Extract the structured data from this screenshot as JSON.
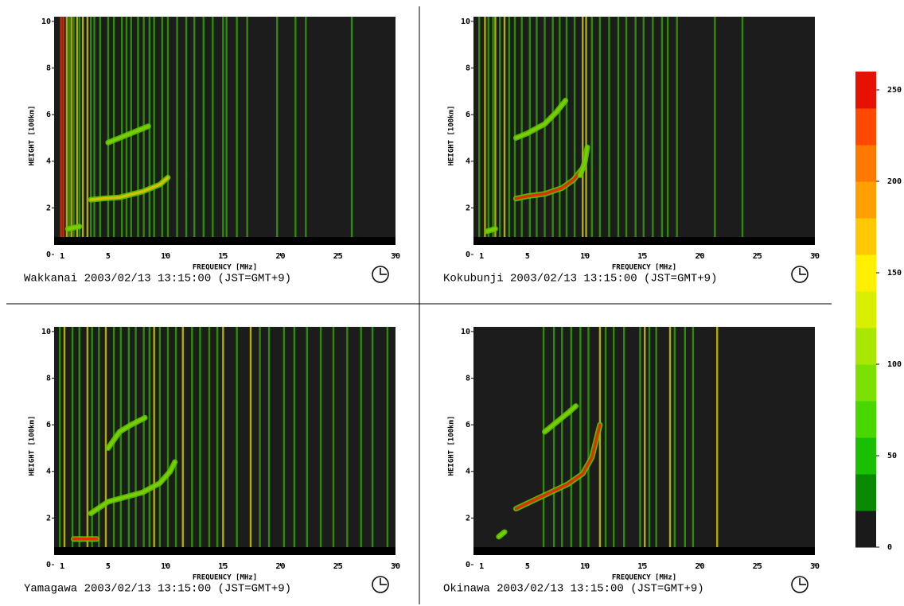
{
  "chart_data": [
    {
      "type": "ionogram",
      "caption": "Wakkanai 2003/02/13 13:15:00 (JST=GMT+9)",
      "xlabel": "FREQUENCY [MHz]",
      "ylabel": "HEIGHT [100km]",
      "xlim": [
        0.3,
        30
      ],
      "ylim": [
        0,
        10.2
      ],
      "xticks": [
        1,
        5,
        10,
        15,
        20,
        25,
        30
      ],
      "yticks": [
        0,
        2,
        4,
        6,
        8,
        10
      ],
      "stripes": [
        {
          "color": "#e83000",
          "x": [
            0.9,
            1.1
          ]
        },
        {
          "color": "#c8c800",
          "x": [
            1.4,
            1.8,
            2.3,
            2.8,
            3.2
          ]
        },
        {
          "color": "#2fa000",
          "x": [
            1.6,
            2.0,
            2.5,
            3.5,
            3.8,
            4.3,
            5.0,
            5.5,
            6.2,
            6.6,
            7.0,
            7.6,
            8.1,
            8.6,
            9.0,
            9.7,
            10.2,
            11.0,
            11.8,
            12.5,
            13.3,
            14.1,
            15.0,
            15.3,
            16.2,
            17.1,
            19.7,
            21.3,
            22.2,
            26.2
          ]
        }
      ],
      "series": [
        {
          "color": "#d4c000",
          "x": [
            3.5,
            4.5,
            6,
            8,
            9.5,
            10.2
          ],
          "values": [
            2.35,
            2.4,
            2.45,
            2.7,
            3.0,
            3.3
          ]
        },
        {
          "color": "#7ccd00",
          "x": [
            5,
            6,
            7.5,
            8.5
          ],
          "values": [
            4.8,
            5.0,
            5.3,
            5.5
          ]
        },
        {
          "color": "#7ccd00",
          "x": [
            1.5,
            2.5
          ],
          "values": [
            1.1,
            1.2
          ]
        }
      ]
    },
    {
      "type": "ionogram",
      "caption": "Kokubunji 2003/02/13 13:15:00 (JST=GMT+9)",
      "xlabel": "FREQUENCY [MHz]",
      "ylabel": "HEIGHT [100km]",
      "xlim": [
        0.3,
        30
      ],
      "ylim": [
        0,
        10.2
      ],
      "xticks": [
        1,
        5,
        10,
        15,
        20,
        25,
        30
      ],
      "yticks": [
        0,
        2,
        4,
        6,
        8,
        10
      ],
      "stripes": [
        {
          "color": "#c8c800",
          "x": [
            1.3,
            2.2,
            3.0,
            9.8,
            10.1
          ]
        },
        {
          "color": "#2fa000",
          "x": [
            0.8,
            1.6,
            2.0,
            2.6,
            3.4,
            3.9,
            4.5,
            5.2,
            5.8,
            6.5,
            7.2,
            7.8,
            8.4,
            9.1,
            10.6,
            11.3,
            12.1,
            12.9,
            13.6,
            14.4,
            15.1,
            15.9,
            16.7,
            17.2,
            18.0,
            21.3,
            23.7
          ]
        }
      ],
      "series": [
        {
          "color": "#e03000",
          "x": [
            4,
            5,
            6.5,
            8,
            9,
            9.8
          ],
          "values": [
            2.4,
            2.5,
            2.6,
            2.85,
            3.2,
            3.7
          ]
        },
        {
          "color": "#7ccd00",
          "x": [
            9.6,
            10,
            10.2
          ],
          "values": [
            3.4,
            4.0,
            4.6
          ]
        },
        {
          "color": "#7ccd00",
          "x": [
            4,
            5,
            6.5,
            7.5,
            8.3
          ],
          "values": [
            5.0,
            5.2,
            5.6,
            6.1,
            6.6
          ]
        },
        {
          "color": "#7ccd00",
          "x": [
            1.5,
            2.2
          ],
          "values": [
            1.0,
            1.1
          ]
        }
      ]
    },
    {
      "type": "ionogram",
      "caption": "Yamagawa 2003/02/13 13:15:00 (JST=GMT+9)",
      "xlabel": "FREQUENCY [MHz]",
      "ylabel": "HEIGHT [100km]",
      "xlim": [
        0.3,
        30
      ],
      "ylim": [
        0,
        10.2
      ],
      "xticks": [
        1,
        5,
        10,
        15,
        20,
        25,
        30
      ],
      "yticks": [
        0,
        2,
        4,
        6,
        8,
        10
      ],
      "stripes": [
        {
          "color": "#c8c800",
          "x": [
            1.2,
            3.2,
            4.8,
            9.0,
            11.5,
            15.0,
            17.4
          ]
        },
        {
          "color": "#2fa000",
          "x": [
            0.8,
            1.9,
            2.5,
            3.6,
            4.2,
            5.5,
            6.1,
            6.8,
            7.4,
            8.1,
            8.6,
            9.5,
            10.2,
            10.9,
            12.3,
            13.0,
            13.8,
            14.5,
            16.2,
            18.2,
            19.0,
            20.3,
            21.2,
            22.3,
            23.5,
            24.6,
            25.8,
            27.0,
            28.0,
            29.3
          ]
        }
      ],
      "series": [
        {
          "color": "#e03000",
          "x": [
            2,
            3,
            4
          ],
          "values": [
            1.1,
            1.1,
            1.1
          ]
        },
        {
          "color": "#7ccd00",
          "x": [
            3.5,
            5,
            6.5,
            8,
            9.5,
            10.4,
            10.8
          ],
          "values": [
            2.2,
            2.7,
            2.9,
            3.1,
            3.5,
            4.0,
            4.4
          ]
        },
        {
          "color": "#7ccd00",
          "x": [
            5,
            6,
            7,
            8.2
          ],
          "values": [
            5.0,
            5.7,
            6.0,
            6.3
          ]
        }
      ]
    },
    {
      "type": "ionogram",
      "caption": "Okinawa 2003/02/13 13:15:00 (JST=GMT+9)",
      "xlabel": "FREQUENCY [MHz]",
      "ylabel": "HEIGHT [100km]",
      "xlim": [
        0.3,
        30
      ],
      "ylim": [
        0,
        10.2
      ],
      "xticks": [
        1,
        5,
        10,
        15,
        20,
        25,
        30
      ],
      "yticks": [
        0,
        2,
        4,
        6,
        8,
        10
      ],
      "stripes": [
        {
          "color": "#c8c800",
          "x": [
            11.3,
            15.2,
            17.4,
            21.5
          ]
        },
        {
          "color": "#2fa000",
          "x": [
            6.4,
            7.3,
            8.0,
            8.8,
            9.6,
            10.3,
            11.8,
            12.5,
            13.4,
            14.8,
            15.6,
            16.2,
            17.8,
            18.7,
            19.4
          ]
        }
      ],
      "series": [
        {
          "color": "#e03000",
          "x": [
            4,
            5.5,
            7,
            8.5,
            9.8,
            10.6,
            11.3
          ],
          "values": [
            2.4,
            2.75,
            3.1,
            3.45,
            3.9,
            4.6,
            6.0
          ]
        },
        {
          "color": "#7ccd00",
          "x": [
            6.5,
            7.5,
            8.5,
            9.2
          ],
          "values": [
            5.7,
            6.1,
            6.5,
            6.8
          ]
        },
        {
          "color": "#7ccd00",
          "x": [
            2.5,
            3
          ],
          "values": [
            1.2,
            1.4
          ]
        }
      ]
    }
  ],
  "colorbar": {
    "lim": [
      0,
      260
    ],
    "ticks": [
      0,
      50,
      100,
      150,
      200,
      250
    ],
    "colors": [
      "#1a1a1a",
      "#0a8a00",
      "#18c000",
      "#48d800",
      "#7ce000",
      "#a8e800",
      "#d8f000",
      "#fff000",
      "#ffc800",
      "#ffa000",
      "#ff7800",
      "#ff4800",
      "#e81000"
    ]
  }
}
